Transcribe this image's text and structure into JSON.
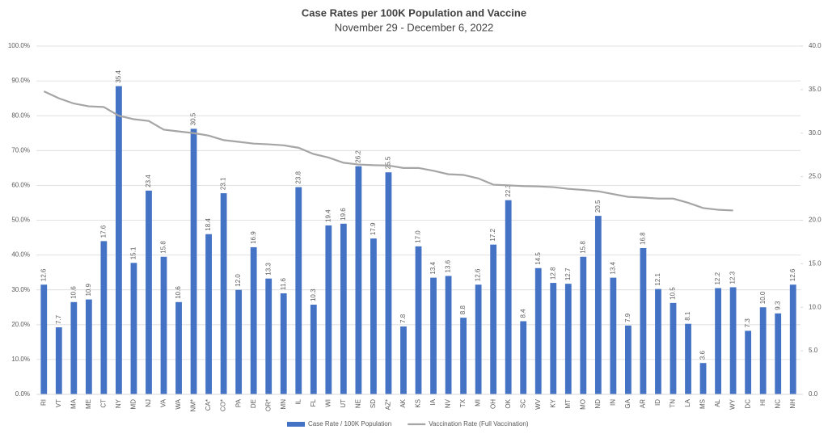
{
  "chart_data": {
    "type": "bar-line",
    "title": "Case Rates per 100K Population and Vaccine",
    "subtitle": "November 29 - December 6, 2022",
    "categories": [
      "RI",
      "VT",
      "MA",
      "ME",
      "CT",
      "NY",
      "MD",
      "NJ",
      "VA",
      "WA",
      "NM*",
      "CA*",
      "CO*",
      "PA",
      "DE",
      "OR*",
      "MN",
      "IL",
      "FL",
      "WI",
      "UT",
      "NE",
      "SD",
      "AZ*",
      "AK",
      "KS",
      "IA",
      "NV",
      "TX",
      "MI",
      "OH",
      "OK",
      "SC",
      "WV",
      "KY",
      "MT",
      "MO",
      "ND",
      "IN",
      "GA",
      "AR",
      "ID",
      "TN",
      "LA",
      "MS",
      "AL",
      "WY",
      "DC",
      "HI",
      "NC",
      "NH"
    ],
    "series": [
      {
        "name": "Case Rate / 100K Population",
        "type": "bar",
        "axis": "y2",
        "color": "#4472c4",
        "values": [
          12.6,
          7.7,
          10.6,
          10.9,
          17.6,
          35.4,
          15.1,
          23.4,
          15.8,
          10.6,
          30.5,
          18.4,
          23.1,
          12.0,
          16.9,
          13.3,
          11.6,
          23.8,
          10.3,
          19.4,
          19.6,
          26.2,
          17.9,
          25.5,
          7.8,
          17.0,
          13.4,
          13.6,
          8.8,
          12.6,
          17.2,
          22.3,
          8.4,
          14.5,
          12.8,
          12.7,
          15.8,
          20.5,
          13.4,
          7.9,
          16.8,
          12.1,
          10.5,
          8.1,
          3.6,
          12.2,
          12.3,
          7.3,
          10.0,
          9.3,
          12.6
        ],
        "value_labels": [
          "12.6",
          "7.7",
          "10.6",
          "10.9",
          "17.6",
          "35.4",
          "15.1",
          "23.4",
          "15.8",
          "10.6",
          "30.5",
          "18.4",
          "23.1",
          "12.0",
          "16.9",
          "13.3",
          "11.6",
          "23.8",
          "10.3",
          "19.4",
          "19.6",
          "26.2",
          "17.9",
          "25.5",
          "7.8",
          "17.0",
          "13.4",
          "13.6",
          "8.8",
          "12.6",
          "17.2",
          "22.3",
          "8.4",
          "14.5",
          "12.8",
          "12.7",
          "15.8",
          "20.5",
          "13.4",
          "7.9",
          "16.8",
          "12.1",
          "10.5",
          "8.1",
          "3.6",
          "12.2",
          "12.3",
          "7.3",
          "10.0",
          "9.3",
          "12.6"
        ]
      },
      {
        "name": "Vaccination Rate (Full Vaccination)",
        "type": "line",
        "axis": "y",
        "color": "#a5a5a5",
        "values": [
          87,
          85,
          83.5,
          82.7,
          82.5,
          80,
          79,
          78.5,
          76,
          75.5,
          75,
          74.3,
          73,
          72.5,
          72,
          71.8,
          71.5,
          70.8,
          69,
          68,
          66.5,
          66,
          65.8,
          65.7,
          65,
          65,
          64.2,
          63.2,
          63,
          62,
          60.2,
          60,
          59.8,
          59.7,
          59.5,
          59,
          58.7,
          58.3,
          57.5,
          56.7,
          56.5,
          56.2,
          56.2,
          55,
          53.5,
          53,
          52.8,
          null,
          null,
          null,
          null
        ]
      }
    ],
    "ylim": [
      0,
      100
    ],
    "yticks": [
      {
        "value": 0,
        "label": "0.0%"
      },
      {
        "value": 10,
        "label": "10.0%"
      },
      {
        "value": 20,
        "label": "20.0%"
      },
      {
        "value": 30,
        "label": "30.0%"
      },
      {
        "value": 40,
        "label": "40.0%"
      },
      {
        "value": 50,
        "label": "50.0%"
      },
      {
        "value": 60,
        "label": "60.0%"
      },
      {
        "value": 70,
        "label": "70.0%"
      },
      {
        "value": 80,
        "label": "80.0%"
      },
      {
        "value": 90,
        "label": "90.0%"
      },
      {
        "value": 100,
        "label": "100.0%"
      }
    ],
    "y2lim": [
      0,
      40
    ],
    "y2ticks": [
      {
        "value": 0,
        "label": "0.0"
      },
      {
        "value": 5,
        "label": "5.0"
      },
      {
        "value": 10,
        "label": "10.0"
      },
      {
        "value": 15,
        "label": "15.0"
      },
      {
        "value": 20,
        "label": "20.0"
      },
      {
        "value": 25,
        "label": "25.0"
      },
      {
        "value": 30,
        "label": "30.0"
      },
      {
        "value": 35,
        "label": "35.0"
      },
      {
        "value": 40,
        "label": "40.0"
      }
    ],
    "grid": true
  }
}
